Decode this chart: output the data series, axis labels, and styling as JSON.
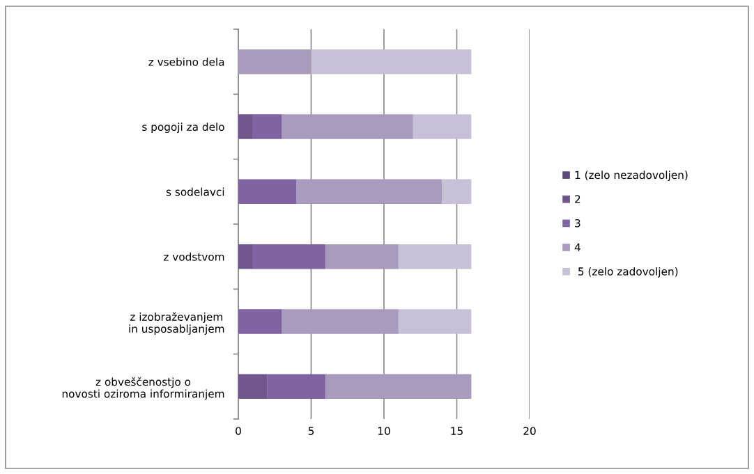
{
  "chart_data": {
    "type": "bar",
    "orientation": "horizontal",
    "stacked": true,
    "categories": [
      "z vsebino dela",
      "s pogoji za delo",
      "s sodelavci",
      "z vodstvom",
      "z izobraževanjem in usposabljanjem",
      "z obveščenostjo o novosti oziroma informiranjem"
    ],
    "series": [
      {
        "name": "1 (zelo nezadovoljen)",
        "color": "#5f497a",
        "values": [
          0,
          0,
          0,
          0,
          0,
          0
        ]
      },
      {
        "name": "2",
        "color": "#6f578e",
        "values": [
          0,
          1,
          0,
          1,
          0,
          2
        ]
      },
      {
        "name": "3",
        "color": "#8064a2",
        "values": [
          0,
          2,
          4,
          5,
          3,
          4
        ]
      },
      {
        "name": "4",
        "color": "#a99bbd",
        "values": [
          5,
          9,
          10,
          5,
          8,
          10
        ]
      },
      {
        "name": " 5 (zelo zadovoljen)",
        "color": "#c8c0d6",
        "values": [
          11,
          4,
          2,
          5,
          5,
          0
        ]
      }
    ],
    "xlim": [
      0,
      20
    ],
    "xticks": [
      0,
      5,
      10,
      15,
      20
    ],
    "grid": "x",
    "legend": "right"
  }
}
